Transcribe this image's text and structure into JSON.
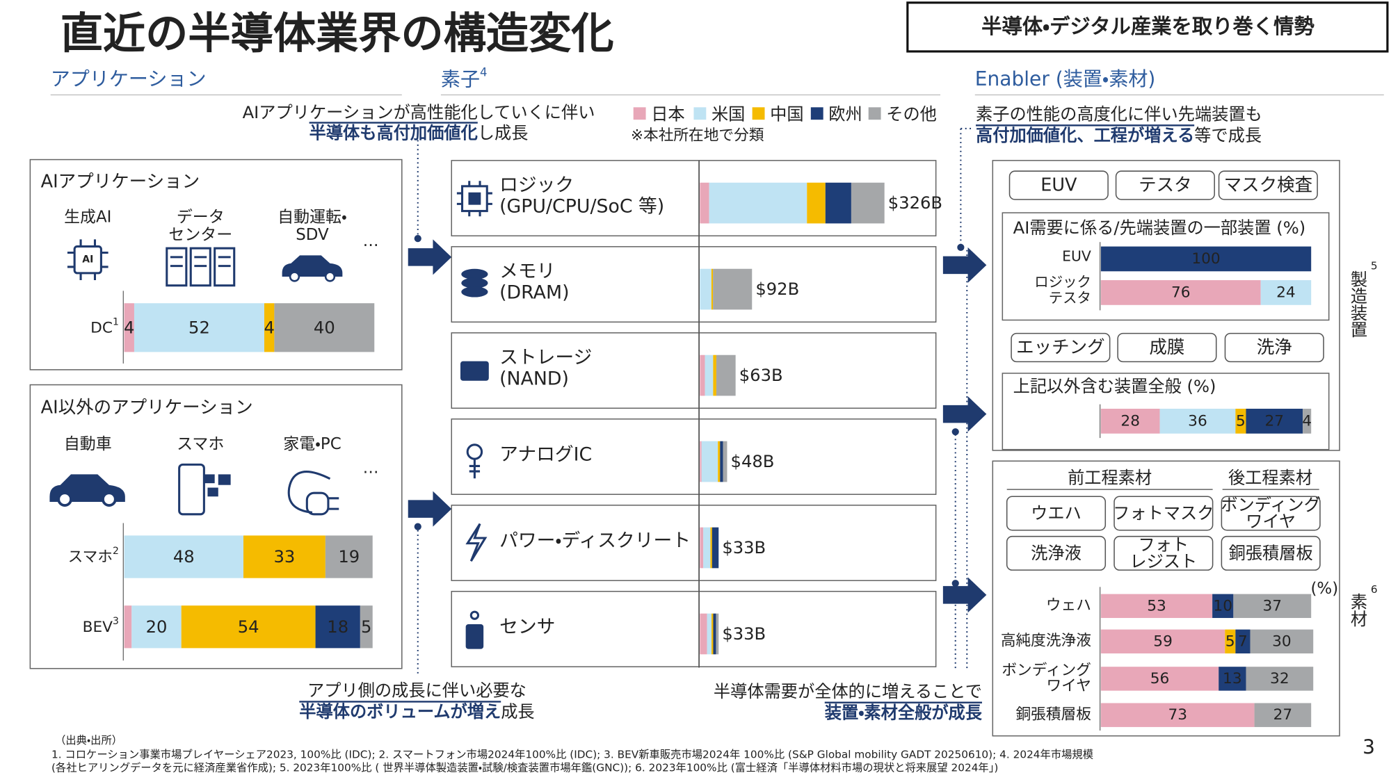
{
  "header": {
    "title": "直近の半導体業界の構造変化",
    "badge": "半導体・デジタル産業を取り巻く情勢"
  },
  "sections": {
    "application": "アプリケーション",
    "device": {
      "text": "素子",
      "note": "4"
    },
    "enabler": "Enabler (装置・素材)"
  },
  "legend": {
    "items": [
      {
        "name": "日本",
        "color": "#e8a7b8"
      },
      {
        "name": "米国",
        "color": "#bfe3f3"
      },
      {
        "name": "中国",
        "color": "#f5bb00"
      },
      {
        "name": "欧州",
        "color": "#1e3e78"
      },
      {
        "name": "その他",
        "color": "#a5a7a9"
      }
    ],
    "note": "※本社所在地で分類"
  },
  "callouts": {
    "top_left": {
      "line1": "AIアプリケーションが高性能化していくに伴い",
      "bold": "半導体も高付加価値化",
      "rest": "し成長"
    },
    "bottom_left": {
      "line1": "アプリ側の成長に伴い必要な",
      "bold": "半導体のボリュームが増え",
      "rest": "成長"
    },
    "bottom_middle": {
      "line1": "半導体需要が全体的に増えることで",
      "bold": "装置・素材全般が成長"
    },
    "top_right": {
      "line1": "素子の性能の高度化に伴い先端装置も",
      "bold": "高付加価値化、工程が増える",
      "rest": "等で成長"
    }
  },
  "ai_panel": {
    "title": "AIアプリケーション",
    "icons": [
      [
        "生成AI"
      ],
      [
        "データ",
        "センター"
      ],
      [
        "自動運転・",
        "SDV"
      ]
    ],
    "more": "…",
    "bars": [
      {
        "label": "DC",
        "note": "1",
        "values": [
          4,
          52,
          4,
          null,
          40
        ]
      }
    ]
  },
  "non_ai_panel": {
    "title": "AI以外のアプリケーション",
    "icons": [
      [
        "自動車"
      ],
      [
        "スマホ"
      ],
      [
        "家電・PC"
      ]
    ],
    "more": "…",
    "bars": [
      {
        "label": "スマホ",
        "note": "2",
        "values": [
          null,
          48,
          33,
          null,
          19
        ]
      },
      {
        "label": "BEV",
        "note": "3",
        "values": [
          3,
          20,
          54,
          18,
          5
        ]
      }
    ]
  },
  "devices": {
    "rows": [
      {
        "name": [
          "ロジック",
          "(GPU/CPU/SoC 等)"
        ],
        "size": 326,
        "size_label": "$326B",
        "shares": [
          5,
          53,
          10,
          14,
          18
        ]
      },
      {
        "name": [
          "メモリ",
          "(DRAM)"
        ],
        "size": 92,
        "size_label": "$92B",
        "shares": [
          null,
          22,
          3,
          null,
          75
        ]
      },
      {
        "name": [
          "ストレージ",
          "(NAND)"
        ],
        "size": 63,
        "size_label": "$63B",
        "shares": [
          14,
          23,
          9,
          null,
          54
        ]
      },
      {
        "name": [
          "アナログIC"
        ],
        "size": 48,
        "size_label": "$48B",
        "shares": [
          6,
          60,
          8,
          11,
          15
        ]
      },
      {
        "name": [
          "パワー・ディスクリート"
        ],
        "size": 33,
        "size_label": "$33B",
        "shares": [
          18,
          38,
          9,
          35,
          null
        ]
      },
      {
        "name": [
          "センサ"
        ],
        "size": 33,
        "size_label": "$33B",
        "shares": [
          38,
          24,
          9,
          15,
          14
        ]
      }
    ]
  },
  "equipment": {
    "label": "製造装置",
    "note": "5",
    "tags_top": [
      "EUV",
      "テスタ",
      "マスク検査"
    ],
    "chart1": {
      "title": "AI需要に係る/先端装置の一部装置 (%)",
      "bars": [
        {
          "label": [
            "EUV"
          ],
          "values": [
            null,
            null,
            null,
            100,
            null
          ]
        },
        {
          "label": [
            "ロジック",
            "テスタ"
          ],
          "values": [
            76,
            24,
            null,
            null,
            null
          ]
        }
      ]
    },
    "tags_bottom": [
      "エッチング",
      "成膜",
      "洗浄"
    ],
    "chart2": {
      "title": "上記以外含む装置全般 (%)",
      "bars": [
        {
          "values": [
            28,
            36,
            5,
            27,
            4
          ]
        }
      ]
    }
  },
  "materials": {
    "label": "素材",
    "note": "6",
    "front": "前工程素材",
    "back": "後工程素材",
    "tags": [
      [
        "ウエハ"
      ],
      [
        "フォトマスク"
      ],
      [
        "ボンディング",
        "ワイヤ"
      ],
      [
        "洗浄液"
      ],
      [
        "フォト",
        "レジスト"
      ],
      [
        "銅張積層板"
      ]
    ],
    "unit": "(%)",
    "bars": [
      {
        "label": [
          "ウェハ"
        ],
        "values": [
          53,
          null,
          null,
          10,
          37
        ]
      },
      {
        "label": [
          "高純度洗浄液"
        ],
        "values": [
          59,
          null,
          5,
          7,
          30
        ]
      },
      {
        "label": [
          "ボンディング",
          "ワイヤ"
        ],
        "values": [
          56,
          null,
          null,
          13,
          32
        ]
      },
      {
        "label": [
          "銅張積層板"
        ],
        "values": [
          73,
          null,
          null,
          null,
          27
        ]
      }
    ]
  },
  "footer": {
    "source_title": "（出典・出所）",
    "lines": [
      "1. コロケーション事業市場プレイヤーシェア2023, 100%比 (IDC); 2. スマートフォン市場2024年100%比 (IDC); 3. BEV新車販売市場2024年 100%比 (S&P Global mobility GADT 20250610); 4. 2024年市場規模",
      "(各社ヒアリングデータを元に経済産業省作成); 5. 2023年100%比 ( 世界半導体製造装置・試験/検査装置市場年鑑(GNC)); 6. 2023年100%比 (富士経済「半導体材料市場の現状と将来展望 2024年」)"
    ],
    "page": "3"
  }
}
